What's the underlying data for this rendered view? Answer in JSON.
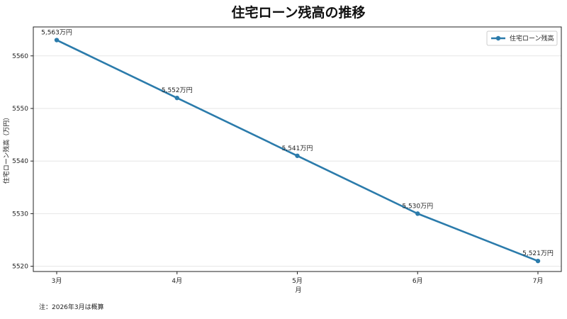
{
  "chart_data": {
    "type": "line",
    "title": "住宅ローン残高の推移",
    "xlabel": "月",
    "ylabel": "住宅ローン残高（万円）",
    "categories": [
      "3月",
      "4月",
      "5月",
      "6月",
      "7月"
    ],
    "series": [
      {
        "name": "住宅ローン残高",
        "values": [
          5563,
          5552,
          5541,
          5530,
          5521
        ],
        "labels": [
          "5,563万円",
          "5,552万円",
          "5,541万円",
          "5,530万円",
          "5,521万円"
        ],
        "color": "#2b7bab"
      }
    ],
    "ylim": [
      5519,
      5565.5
    ],
    "yticks": [
      5520,
      5530,
      5540,
      5550,
      5560
    ],
    "grid": "horizontal",
    "legend_position": "top-right",
    "note": "注：2026年3月は概算"
  }
}
